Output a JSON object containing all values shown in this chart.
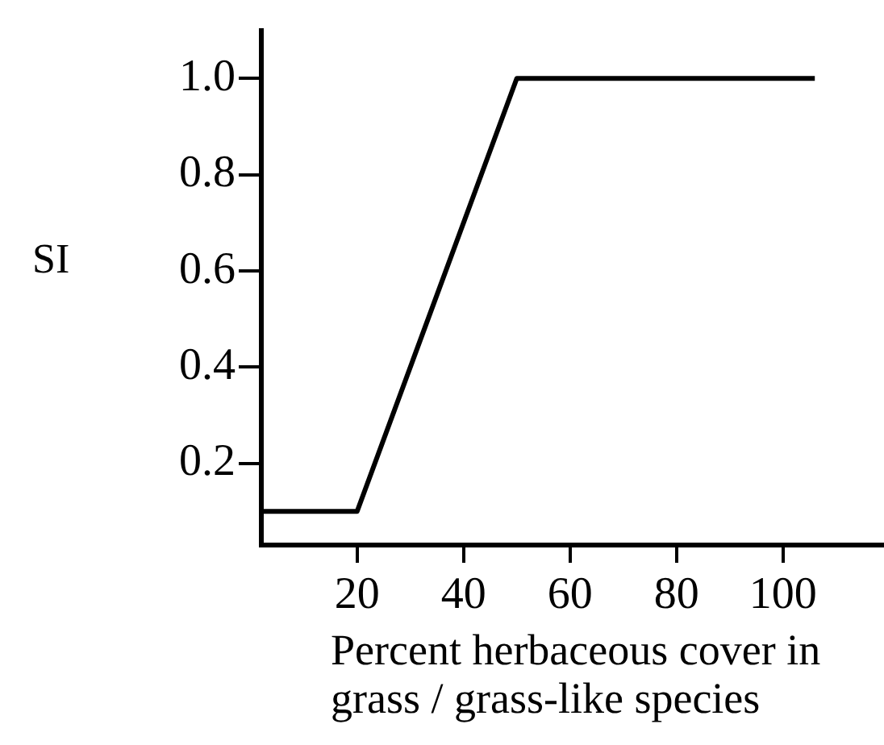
{
  "chart_data": {
    "type": "line",
    "xlabel": "Percent herbaceous cover in grass / grass-like species",
    "ylabel": "SI",
    "x": [
      2,
      20,
      50,
      106
    ],
    "series": [
      {
        "color": "#000000",
        "values": [
          0.1,
          0.1,
          1.0,
          1.0
        ]
      }
    ],
    "xlim": [
      2,
      119
    ],
    "xticks": [
      20,
      40,
      60,
      80,
      100
    ],
    "ylim": [
      0.03,
      1.1
    ],
    "yticks": [
      0.2,
      0.4,
      0.6,
      0.8,
      {
        "value": 1.0,
        "label": "1.0"
      }
    ],
    "grid": false,
    "legend": false,
    "marker": "none",
    "line_style": "solid"
  }
}
